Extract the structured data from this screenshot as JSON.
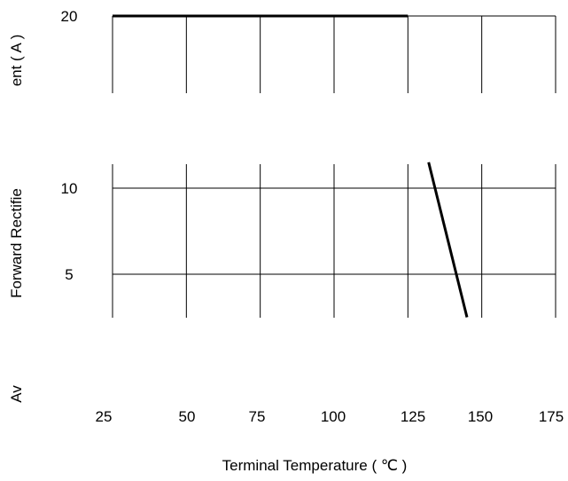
{
  "chart_data": {
    "type": "line",
    "title": "",
    "xlabel": "Terminal Temperature ( ℃ )",
    "ylabel": "Average Forward Rectified Current ( A )",
    "ylabel_visible_fragments": [
      "Av",
      "Forward  Rectifie",
      "ent ( A )"
    ],
    "x_ticks": [
      25,
      50,
      75,
      100,
      125,
      150,
      175
    ],
    "x_tick_labels": [
      "25",
      "50",
      "75",
      "100",
      "125",
      "150",
      "175"
    ],
    "y_ticks": [
      5,
      10,
      20
    ],
    "y_tick_labels": [
      "5",
      "10",
      "20"
    ],
    "xlim": [
      25,
      175
    ],
    "grid": true,
    "series": [
      {
        "points": [
          [
            25,
            20
          ],
          [
            125,
            20
          ]
        ]
      },
      {
        "points": [
          [
            132,
            11.5
          ],
          [
            145,
            2.5
          ]
        ]
      }
    ],
    "colors": {
      "line": "#000000",
      "grid": "#000000",
      "background": "#ffffff"
    }
  }
}
